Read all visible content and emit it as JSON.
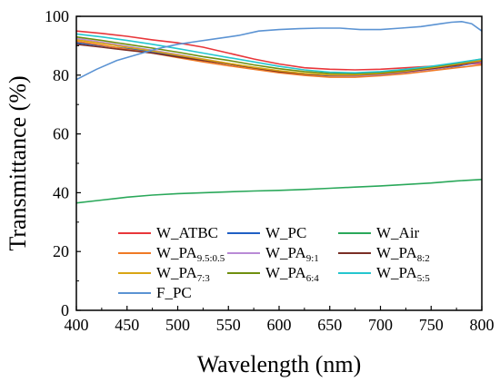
{
  "chart_data": {
    "type": "line",
    "xlabel": "Wavelength (nm)",
    "ylabel": "Transmittance (%)",
    "xlim": [
      400,
      800
    ],
    "ylim": [
      0,
      100
    ],
    "xticks": [
      400,
      450,
      500,
      550,
      600,
      650,
      700,
      750,
      800
    ],
    "yticks": [
      0,
      20,
      40,
      60,
      80,
      100
    ],
    "grid": false,
    "legend_position": "bottom-inside",
    "series": [
      {
        "name": "W_ATBC",
        "color": "#e8363a",
        "x": [
          400,
          425,
          450,
          475,
          500,
          525,
          550,
          575,
          600,
          625,
          650,
          675,
          700,
          725,
          750,
          775,
          800
        ],
        "y": [
          95,
          94.2,
          93.2,
          92,
          91,
          89.5,
          87.5,
          85.5,
          83.8,
          82.5,
          82,
          81.8,
          82,
          82.5,
          83,
          83.5,
          84
        ]
      },
      {
        "name": "W_PC",
        "color": "#1f5fc4",
        "x": [
          400,
          425,
          450,
          475,
          500,
          525,
          550,
          575,
          600,
          625,
          650,
          675,
          700,
          725,
          750,
          775,
          800
        ],
        "y": [
          91,
          90,
          89,
          88,
          86.5,
          85,
          83.8,
          82.5,
          81,
          80.2,
          79.8,
          79.8,
          80.2,
          81,
          82,
          83,
          84.5
        ]
      },
      {
        "name": "W_Air",
        "color": "#2aa85a",
        "x": [
          400,
          425,
          450,
          475,
          500,
          525,
          550,
          575,
          600,
          625,
          650,
          675,
          700,
          725,
          750,
          775,
          800
        ],
        "y": [
          36.5,
          37.5,
          38.5,
          39.2,
          39.7,
          40,
          40.3,
          40.6,
          40.8,
          41.1,
          41.5,
          41.9,
          42.3,
          42.8,
          43.3,
          44,
          44.5
        ]
      },
      {
        "name": "W_PA",
        "sub": "9.5:0.5",
        "color": "#f07a25",
        "x": [
          400,
          425,
          450,
          475,
          500,
          525,
          550,
          575,
          600,
          625,
          650,
          675,
          700,
          725,
          750,
          775,
          800
        ],
        "y": [
          91.5,
          90.2,
          88.8,
          87.5,
          86,
          84.5,
          83.2,
          82,
          80.8,
          79.9,
          79.3,
          79.3,
          79.8,
          80.5,
          81.5,
          82.5,
          83.5
        ]
      },
      {
        "name": "W_PA",
        "sub": "9:1",
        "color": "#b98ad6",
        "x": [
          400,
          425,
          450,
          475,
          500,
          525,
          550,
          575,
          600,
          625,
          650,
          675,
          700,
          725,
          750,
          775,
          800
        ],
        "y": [
          92.5,
          91.2,
          89.8,
          88.5,
          87,
          85.5,
          84,
          82.6,
          81.3,
          80.4,
          79.9,
          79.8,
          80.2,
          81,
          82,
          83.2,
          84.5
        ]
      },
      {
        "name": "W_PA",
        "sub": "8:2",
        "color": "#7a2e26",
        "x": [
          400,
          425,
          450,
          475,
          500,
          525,
          550,
          575,
          600,
          625,
          650,
          675,
          700,
          725,
          750,
          775,
          800
        ],
        "y": [
          90.5,
          89.5,
          88.5,
          87.5,
          86.2,
          85,
          83.8,
          82.5,
          81.2,
          80.4,
          80,
          80,
          80.4,
          81.2,
          82.2,
          83.3,
          84.8
        ]
      },
      {
        "name": "W_PA",
        "sub": "7:3",
        "color": "#d9a514",
        "x": [
          400,
          425,
          450,
          475,
          500,
          525,
          550,
          575,
          600,
          625,
          650,
          675,
          700,
          725,
          750,
          775,
          800
        ],
        "y": [
          92,
          90.8,
          89.5,
          88.2,
          86.8,
          85.4,
          84,
          82.7,
          81.5,
          80.6,
          80.1,
          80.1,
          80.6,
          81.4,
          82.5,
          83.7,
          85
        ]
      },
      {
        "name": "W_PA",
        "sub": "6:4",
        "color": "#6f8f0f",
        "x": [
          400,
          425,
          450,
          475,
          500,
          525,
          550,
          575,
          600,
          625,
          650,
          675,
          700,
          725,
          750,
          775,
          800
        ],
        "y": [
          93,
          91.8,
          90.5,
          89.2,
          87.8,
          86.3,
          85,
          83.5,
          82.2,
          81.2,
          80.6,
          80.5,
          80.9,
          81.7,
          82.8,
          84,
          85.5
        ]
      },
      {
        "name": "W_PA",
        "sub": "5:5",
        "color": "#25c6cf",
        "x": [
          400,
          425,
          450,
          475,
          500,
          525,
          550,
          575,
          600,
          625,
          650,
          675,
          700,
          725,
          750,
          775,
          800
        ],
        "y": [
          94,
          93,
          91.8,
          90.5,
          89,
          87.5,
          86,
          84.5,
          83,
          81.8,
          81,
          80.8,
          81.2,
          82,
          83,
          84.2,
          85.5
        ]
      },
      {
        "name": "F_PC",
        "color": "#5b93d3",
        "x": [
          400,
          420,
          440,
          460,
          480,
          500,
          520,
          540,
          560,
          580,
          600,
          620,
          640,
          660,
          680,
          700,
          720,
          740,
          760,
          770,
          780,
          790,
          800
        ],
        "y": [
          78.5,
          82,
          85,
          87,
          89,
          90.5,
          91.5,
          92.5,
          93.5,
          95,
          95.5,
          95.8,
          96,
          96,
          95.5,
          95.5,
          96,
          96.5,
          97.5,
          98,
          98.2,
          97.5,
          95
        ]
      }
    ]
  }
}
